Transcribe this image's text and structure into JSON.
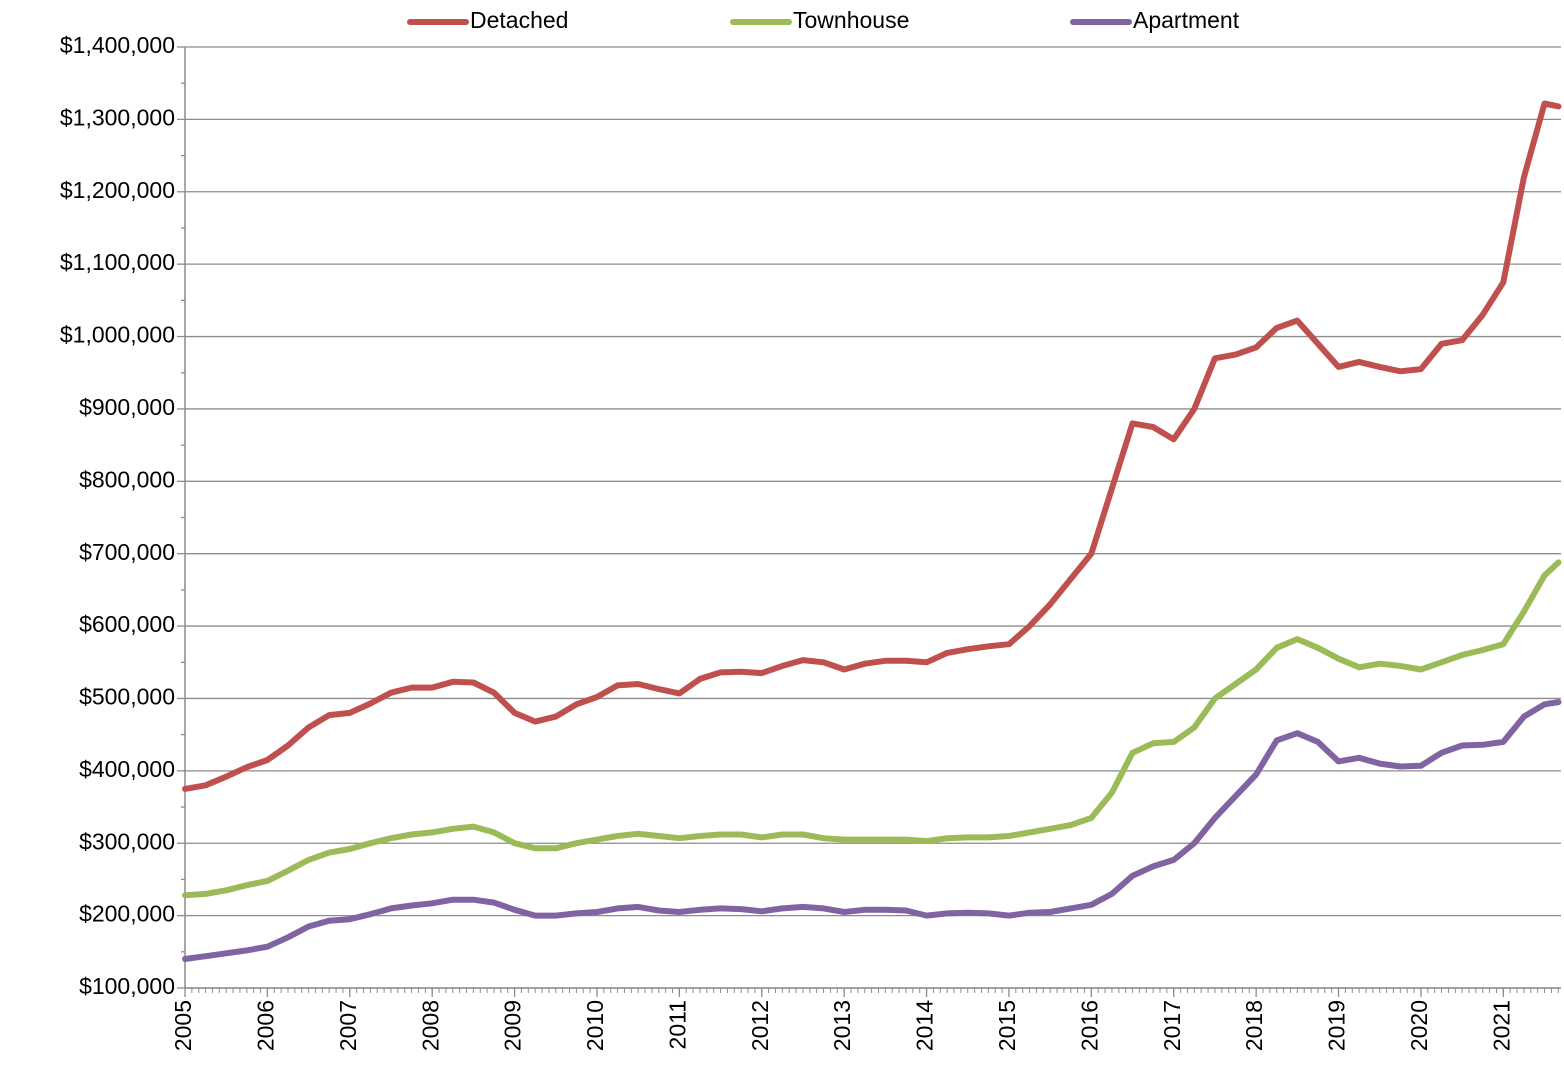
{
  "chart_data": {
    "type": "line",
    "x": [
      2005,
      2005.25,
      2005.5,
      2005.75,
      2006,
      2006.25,
      2006.5,
      2006.75,
      2007,
      2007.25,
      2007.5,
      2007.75,
      2008,
      2008.25,
      2008.5,
      2008.75,
      2009,
      2009.25,
      2009.5,
      2009.75,
      2010,
      2010.25,
      2010.5,
      2010.75,
      2011,
      2011.25,
      2011.5,
      2011.75,
      2012,
      2012.25,
      2012.5,
      2012.75,
      2013,
      2013.25,
      2013.5,
      2013.75,
      2014,
      2014.25,
      2014.5,
      2014.75,
      2015,
      2015.25,
      2015.5,
      2015.75,
      2016,
      2016.25,
      2016.5,
      2016.75,
      2017,
      2017.25,
      2017.5,
      2017.75,
      2018,
      2018.25,
      2018.5,
      2018.75,
      2019,
      2019.25,
      2019.5,
      2019.75,
      2020,
      2020.25,
      2020.5,
      2020.75,
      2021,
      2021.25,
      2021.5,
      2021.67
    ],
    "series": [
      {
        "name": "Detached",
        "color": "#c0504d",
        "values": [
          375000,
          380000,
          392000,
          405000,
          415000,
          435000,
          460000,
          477000,
          480000,
          493000,
          508000,
          515000,
          515000,
          523000,
          522000,
          508000,
          480000,
          468000,
          475000,
          492000,
          502000,
          518000,
          520000,
          513000,
          507000,
          527000,
          536000,
          537000,
          535000,
          545000,
          553000,
          550000,
          540000,
          548000,
          552000,
          552000,
          550000,
          563000,
          568000,
          572000,
          575000,
          600000,
          630000,
          665000,
          700000,
          790000,
          880000,
          875000,
          858000,
          900000,
          970000,
          975000,
          985000,
          1012000,
          1022000,
          990000,
          958000,
          965000,
          958000,
          952000,
          955000,
          990000,
          995000,
          1030000,
          1075000,
          1220000,
          1322000,
          1318000
        ]
      },
      {
        "name": "Townhouse",
        "color": "#9bbb59",
        "values": [
          228000,
          230000,
          235000,
          242000,
          248000,
          262000,
          277000,
          287000,
          292000,
          300000,
          307000,
          312000,
          315000,
          320000,
          323000,
          315000,
          300000,
          293000,
          293000,
          300000,
          305000,
          310000,
          313000,
          310000,
          307000,
          310000,
          312000,
          312000,
          308000,
          312000,
          312000,
          307000,
          305000,
          305000,
          305000,
          305000,
          303000,
          307000,
          308000,
          308000,
          310000,
          315000,
          320000,
          325000,
          335000,
          370000,
          425000,
          438000,
          440000,
          460000,
          500000,
          520000,
          540000,
          570000,
          582000,
          570000,
          555000,
          543000,
          548000,
          545000,
          540000,
          550000,
          560000,
          567000,
          575000,
          620000,
          670000,
          688000
        ]
      },
      {
        "name": "Apartment",
        "color": "#8064a2",
        "values": [
          140000,
          144000,
          148000,
          152000,
          157000,
          170000,
          185000,
          193000,
          195000,
          202000,
          210000,
          214000,
          217000,
          222000,
          222000,
          218000,
          208000,
          200000,
          200000,
          203000,
          205000,
          210000,
          212000,
          207000,
          205000,
          208000,
          210000,
          209000,
          206000,
          210000,
          212000,
          210000,
          205000,
          208000,
          208000,
          207000,
          200000,
          203000,
          204000,
          203000,
          200000,
          204000,
          205000,
          210000,
          215000,
          230000,
          255000,
          268000,
          277000,
          300000,
          335000,
          365000,
          395000,
          442000,
          452000,
          440000,
          413000,
          418000,
          410000,
          406000,
          407000,
          425000,
          435000,
          436000,
          440000,
          475000,
          492000,
          495000
        ]
      }
    ],
    "xlim": [
      2005,
      2021.7
    ],
    "xticks": [
      2005,
      2006,
      2007,
      2008,
      2009,
      2010,
      2011,
      2012,
      2013,
      2014,
      2015,
      2016,
      2017,
      2018,
      2019,
      2020,
      2021
    ],
    "ylim": [
      100000,
      1400000
    ],
    "yticks": [
      {
        "value": 100000,
        "label": "$100,000"
      },
      {
        "value": 200000,
        "label": "$200,000"
      },
      {
        "value": 300000,
        "label": "$300,000"
      },
      {
        "value": 400000,
        "label": "$400,000"
      },
      {
        "value": 500000,
        "label": "$500,000"
      },
      {
        "value": 600000,
        "label": "$600,000"
      },
      {
        "value": 700000,
        "label": "$700,000"
      },
      {
        "value": 800000,
        "label": "$800,000"
      },
      {
        "value": 900000,
        "label": "$900,000"
      },
      {
        "value": 1000000,
        "label": "$1,000,000"
      },
      {
        "value": 1100000,
        "label": "$1,100,000"
      },
      {
        "value": 1200000,
        "label": "$1,200,000"
      },
      {
        "value": 1300000,
        "label": "$1,300,000"
      },
      {
        "value": 1400000,
        "label": "$1,400,000"
      }
    ],
    "grid": true,
    "legend": "top"
  }
}
